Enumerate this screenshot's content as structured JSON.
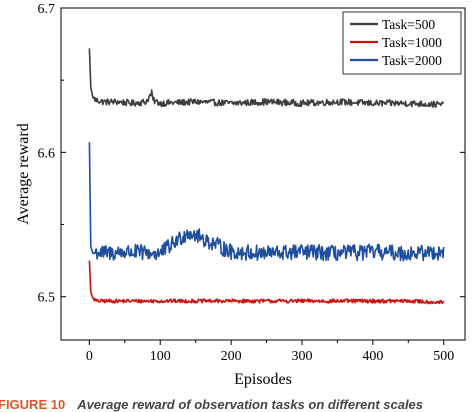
{
  "chart_data": {
    "type": "line",
    "xlabel": "Episodes",
    "ylabel": "Average reward",
    "xlim": [
      -40,
      530
    ],
    "ylim": [
      6.47,
      6.7
    ],
    "xticks": [
      0,
      100,
      200,
      300,
      400,
      500
    ],
    "yticks": [
      6.5,
      6.6,
      6.7
    ],
    "ytick_labels": [
      "6.5",
      "6.6",
      "6.7"
    ],
    "grid": false,
    "legend_position": "top-right",
    "series": [
      {
        "name": "Task=500",
        "color": "#3d3d3d",
        "x": [
          0,
          2,
          5,
          10,
          20,
          40,
          60,
          80,
          88,
          90,
          100,
          150,
          200,
          250,
          300,
          350,
          400,
          450,
          500
        ],
        "y": [
          6.672,
          6.645,
          6.638,
          6.636,
          6.635,
          6.635,
          6.634,
          6.635,
          6.641,
          6.636,
          6.634,
          6.635,
          6.634,
          6.635,
          6.634,
          6.635,
          6.634,
          6.634,
          6.633
        ]
      },
      {
        "name": "Task=1000",
        "color": "#cc1111",
        "x": [
          0,
          2,
          5,
          10,
          20,
          50,
          100,
          150,
          200,
          250,
          300,
          350,
          400,
          450,
          500
        ],
        "y": [
          6.525,
          6.503,
          6.499,
          6.497,
          6.497,
          6.497,
          6.497,
          6.497,
          6.497,
          6.497,
          6.497,
          6.497,
          6.497,
          6.497,
          6.496
        ]
      },
      {
        "name": "Task=2000",
        "color": "#1f4e9e",
        "x": [
          0,
          2,
          5,
          10,
          20,
          50,
          100,
          140,
          200,
          250,
          300,
          350,
          400,
          450,
          500
        ],
        "y": [
          6.607,
          6.535,
          6.53,
          6.531,
          6.53,
          6.531,
          6.53,
          6.545,
          6.531,
          6.53,
          6.531,
          6.53,
          6.531,
          6.53,
          6.531
        ]
      }
    ]
  },
  "caption": {
    "label": "FIGURE 10",
    "text": "Average reward of observation tasks on different scales"
  }
}
